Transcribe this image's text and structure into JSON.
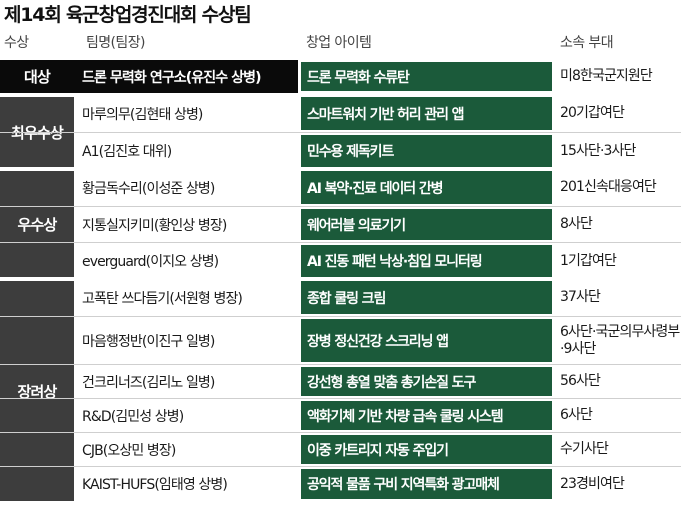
{
  "title": "제14회 육군창업경진대회 수상팀",
  "headers": {
    "award": "수상",
    "team": "팀명(팀장)",
    "idea": "창업 아이템",
    "unit": "소속 부대"
  },
  "awards": [
    "대상",
    "최우수상",
    "우수상",
    "장려상"
  ],
  "rows": [
    {
      "team": "드론 무력화 연구소(유진수 상병)",
      "idea": "드론 무력화 수류탄",
      "unit": "미8한국군지원단"
    },
    {
      "team": "마루의무(김현태 상병)",
      "idea": "스마트워치 기반 허리 관리 앱",
      "unit": "20기갑여단"
    },
    {
      "team": "A1(김진호 대위)",
      "idea": "민수용 제독키트",
      "unit": "15사단·3사단"
    },
    {
      "team": "황금독수리(이성준 상병)",
      "idea": "AI 복약·진료 데이터 간병",
      "unit": "201신속대응여단"
    },
    {
      "team": "지통실지키미(황인상 병장)",
      "idea": "웨어러블 의료기기",
      "unit": "8사단"
    },
    {
      "team": "everguard(이지오 상병)",
      "idea": "AI 진동 패턴 낙상·침입 모니터링",
      "unit": "1기갑여단"
    },
    {
      "team": "고폭탄 쓰다듬기(서원형 병장)",
      "idea": "종합 쿨링 크림",
      "unit": "37사단"
    },
    {
      "team": "마음행정반(이진구 일병)",
      "idea": "장병 정신건강 스크리닝 앱",
      "unit": "6사단·국군의무사령부·9사단"
    },
    {
      "team": "건크리너즈(김리노 일병)",
      "idea": "강선형 총열 맞춤 총기손질 도구",
      "unit": "56사단"
    },
    {
      "team": "R&D(김민성 상병)",
      "idea": "액화기체 기반 차량 급속 쿨링 시스템",
      "unit": "6사단"
    },
    {
      "team": "CJB(오상민 병장)",
      "idea": "이중 카트리지 자동 주입기",
      "unit": "수기사단"
    },
    {
      "team": "KAIST-HUFS(임태영 상병)",
      "idea": "공익적 물품 구비 지역특화 광고매체",
      "unit": "23경비여단"
    }
  ]
}
